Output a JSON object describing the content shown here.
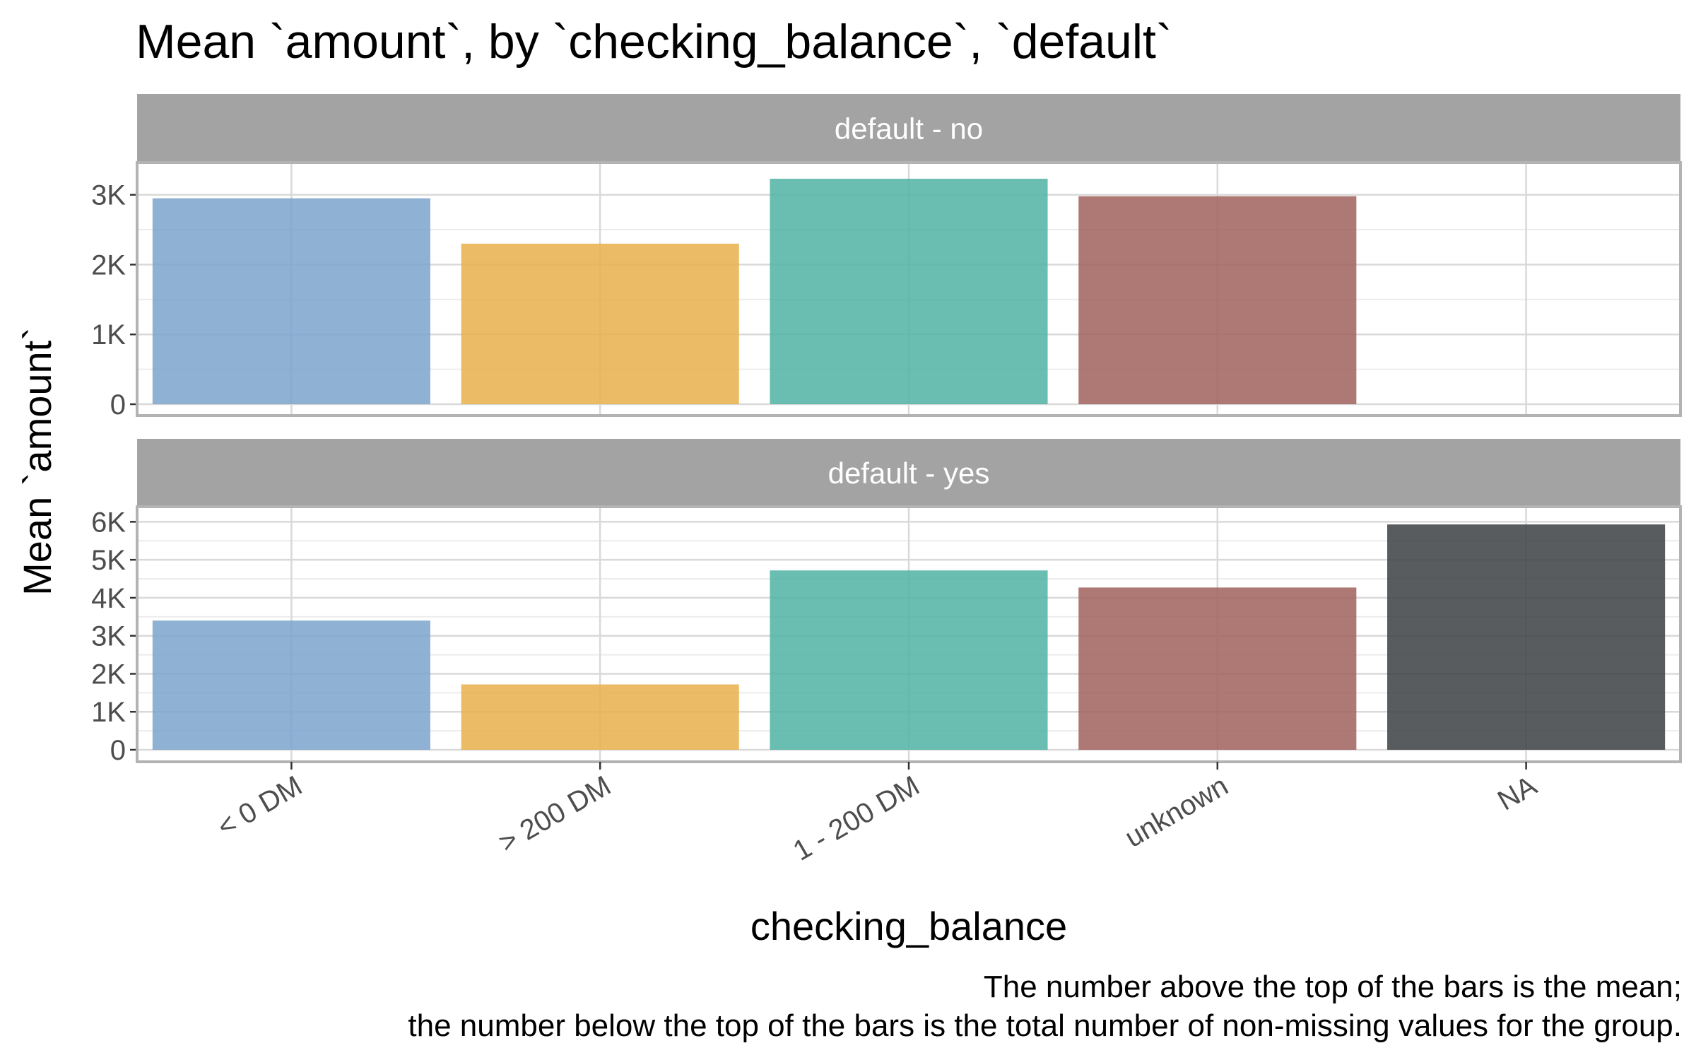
{
  "chart_data": {
    "type": "bar",
    "title": "Mean `amount`, by `checking_balance`, `default`",
    "xlabel": "checking_balance",
    "ylabel": "Mean `amount`",
    "caption": [
      "The number above the top of the bars is the mean;",
      "the number below the top of the bars is the total number of non-missing values for the group."
    ],
    "categories": [
      "< 0 DM",
      "> 200 DM",
      "1 - 200 DM",
      "unknown",
      "NA"
    ],
    "colors": [
      "#7ba3cc",
      "#e8b04a",
      "#4fb3a3",
      "#a0615c",
      "#3c4042"
    ],
    "grid": true,
    "panels": [
      {
        "strip": "default - no",
        "ylim": [
          0,
          3300
        ],
        "yticks": [
          0,
          1000,
          2000,
          3000
        ],
        "ytick_labels": [
          "0",
          "1K",
          "2K",
          "3K"
        ],
        "values": [
          2950,
          2300,
          3230,
          2980,
          null
        ]
      },
      {
        "strip": "default - yes",
        "ylim": [
          0,
          6100
        ],
        "yticks": [
          0,
          1000,
          2000,
          3000,
          4000,
          5000,
          6000
        ],
        "ytick_labels": [
          "0",
          "1K",
          "2K",
          "3K",
          "4K",
          "5K",
          "6K"
        ],
        "values": [
          3400,
          1720,
          4720,
          4270,
          5930
        ]
      }
    ]
  }
}
